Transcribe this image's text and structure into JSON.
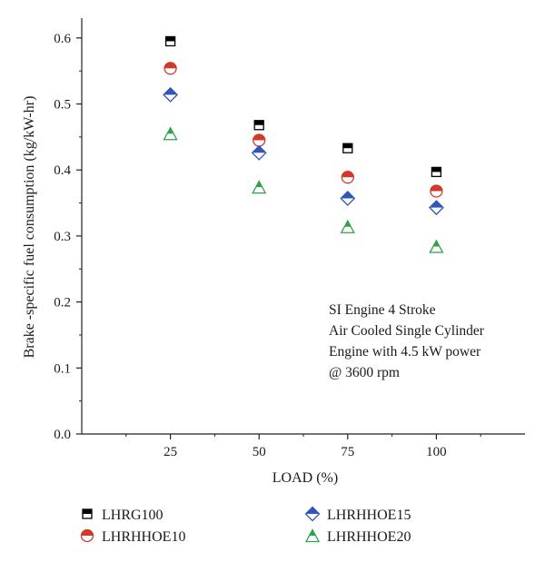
{
  "chart_data": {
    "type": "scatter",
    "title": "",
    "xlabel": "LOAD (%)",
    "ylabel": "Brake -specific fuel consumption (kg/kW-hr)",
    "x": [
      25,
      50,
      75,
      100
    ],
    "x_ticks": [
      "25",
      "50",
      "75",
      "100"
    ],
    "xlim": [
      0,
      125
    ],
    "ylim": [
      0,
      0.63
    ],
    "y_ticks": [
      "0.0",
      "0.1",
      "0.2",
      "0.3",
      "0.4",
      "0.5",
      "0.6"
    ],
    "grid": false,
    "legend_position": "bottom",
    "series": [
      {
        "name": "LHRG100",
        "marker": "square-half",
        "color": "#000000",
        "values": [
          0.595,
          0.468,
          0.433,
          0.397
        ]
      },
      {
        "name": "LHRHHOE10",
        "marker": "circle-half",
        "color": "#d03a2a",
        "values": [
          0.554,
          0.445,
          0.389,
          0.368
        ]
      },
      {
        "name": "LHRHHOE15",
        "marker": "diamond-half",
        "color": "#2f56b8",
        "values": [
          0.514,
          0.426,
          0.357,
          0.343
        ]
      },
      {
        "name": "LHRHHOE20",
        "marker": "triangle-half",
        "color": "#2ea24a",
        "values": [
          0.455,
          0.374,
          0.314,
          0.284
        ]
      }
    ],
    "annotation": [
      "SI Engine 4 Stroke",
      "Air Cooled Single Cylinder",
      "Engine with 4.5 kW power",
      "@ 3600 rpm"
    ]
  }
}
